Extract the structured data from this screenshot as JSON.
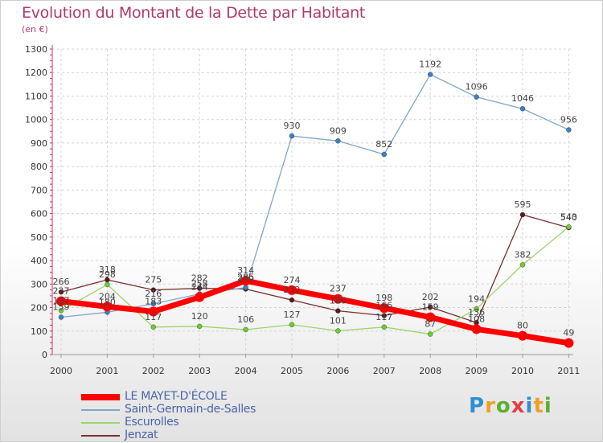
{
  "title": "Evolution du Montant de la Dette par Habitant",
  "subtitle": "(en €)",
  "logo": {
    "text": "Proxiti",
    "letters": [
      {
        "ch": "P",
        "color": "#2f8fd0"
      },
      {
        "ch": "r",
        "color": "#f0a020"
      },
      {
        "ch": "o",
        "color": "#5cb030"
      },
      {
        "ch": "x",
        "color": "#e04040"
      },
      {
        "ch": "i",
        "color": "#2f8fd0"
      },
      {
        "ch": "t",
        "color": "#f0a020"
      },
      {
        "ch": "i",
        "color": "#5cb030"
      }
    ]
  },
  "chart_data": {
    "type": "line",
    "title": "Evolution du Montant de la Dette par Habitant",
    "ylabel": "(en €)",
    "xlabel": "",
    "categories": [
      "2000",
      "2001",
      "2002",
      "2003",
      "2004",
      "2005",
      "2006",
      "2007",
      "2008",
      "2009",
      "2010",
      "2011"
    ],
    "ylim": [
      0,
      1300
    ],
    "yticks": [
      0,
      100,
      200,
      300,
      400,
      500,
      600,
      700,
      800,
      900,
      1000,
      1100,
      1200,
      1300
    ],
    "grid": true,
    "legend_position": "bottom-left",
    "series": [
      {
        "name": "LE MAYET-D'ÉCOLE",
        "color": "#ff0000",
        "point_color": "#ff0000",
        "values": [
          227,
          204,
          183,
          244,
          314,
          274,
          237,
          198,
          159,
          108,
          80,
          49
        ]
      },
      {
        "name": "Saint-Germain-de-Salles",
        "color": "#7fa7cc",
        "point_color": "#3f7fc4",
        "values": [
          159,
          180,
          216,
          258,
          285,
          930,
          909,
          852,
          1192,
          1096,
          1046,
          956
        ]
      },
      {
        "name": "Escurolles",
        "color": "#9ad66a",
        "point_color": "#6ccc2e",
        "values": [
          187,
          298,
          117,
          120,
          106,
          127,
          101,
          117,
          87,
          194,
          382,
          543
        ]
      },
      {
        "name": "Jenzat",
        "color": "#7a3030",
        "point_color": "#5a1a1a",
        "values": [
          266,
          318,
          275,
          282,
          279,
          232,
          186,
          166,
          202,
          136,
          595,
          540
        ]
      }
    ]
  }
}
